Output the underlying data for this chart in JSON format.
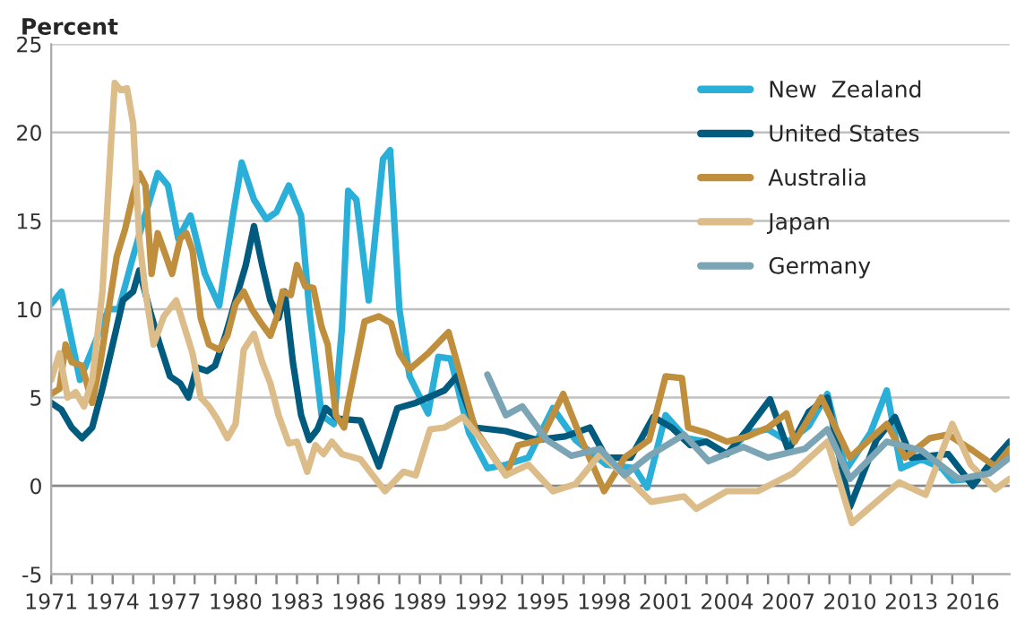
{
  "chart_data": {
    "type": "line",
    "ylabel": "Percent",
    "xlim": [
      1971,
      2017.8
    ],
    "ylim": [
      -5,
      25
    ],
    "yticks": [
      -5,
      0,
      5,
      10,
      15,
      20,
      25
    ],
    "xticks": [
      1971,
      {
        "value": 1972,
        "label": null
      },
      {
        "value": 1973,
        "label": null
      },
      1974,
      {
        "value": 1975,
        "label": null
      },
      {
        "value": 1976,
        "label": null
      },
      1977,
      {
        "value": 1978,
        "label": null
      },
      {
        "value": 1979,
        "label": null
      },
      1980,
      {
        "value": 1981,
        "label": null
      },
      {
        "value": 1982,
        "label": null
      },
      1983,
      {
        "value": 1984,
        "label": null
      },
      {
        "value": 1985,
        "label": null
      },
      1986,
      {
        "value": 1987,
        "label": null
      },
      {
        "value": 1988,
        "label": null
      },
      1989,
      {
        "value": 1990,
        "label": null
      },
      {
        "value": 1991,
        "label": null
      },
      1992,
      {
        "value": 1993,
        "label": null
      },
      {
        "value": 1994,
        "label": null
      },
      1995,
      {
        "value": 1996,
        "label": null
      },
      {
        "value": 1997,
        "label": null
      },
      1998,
      {
        "value": 1999,
        "label": null
      },
      {
        "value": 2000,
        "label": null
      },
      2001,
      {
        "value": 2002,
        "label": null
      },
      {
        "value": 2003,
        "label": null
      },
      2004,
      {
        "value": 2005,
        "label": null
      },
      {
        "value": 2006,
        "label": null
      },
      2007,
      {
        "value": 2008,
        "label": null
      },
      {
        "value": 2009,
        "label": null
      },
      2010,
      {
        "value": 2011,
        "label": null
      },
      {
        "value": 2012,
        "label": null
      },
      2013,
      {
        "value": 2014,
        "label": null
      },
      {
        "value": 2015,
        "label": null
      },
      2016
    ],
    "grid": "y",
    "legend": "top right",
    "marker": "none",
    "line_style": "solid",
    "series": [
      {
        "name": "New  Zealand",
        "color": "#2ab0d8",
        "x": [
          1971,
          1971.5,
          1972.4,
          1973.8,
          1974.3,
          1975,
          1975.5,
          1976.2,
          1976.7,
          1977.2,
          1977.8,
          1978.5,
          1979.2,
          1979.9,
          1980.3,
          1980.9,
          1981.5,
          1982,
          1982.6,
          1983.2,
          1983.6,
          1984.2,
          1984.8,
          1985.2,
          1985.5,
          1985.9,
          1986.5,
          1987.2,
          1987.55,
          1988,
          1988.5,
          1989.4,
          1989.9,
          1990.5,
          1991.4,
          1992.3,
          1993.2,
          1994.3,
          1995.5,
          1996.6,
          1998.1,
          1999.5,
          2000.1,
          2001,
          2002,
          2003,
          2004,
          2005,
          2006,
          2007,
          2008,
          2008.9,
          2009.8,
          2011,
          2011.8,
          2012.5,
          2013.5,
          2014.5,
          2015,
          2016,
          2017.8
        ],
        "values": [
          10.3,
          11,
          6,
          10,
          10,
          13,
          15,
          17.7,
          17,
          14,
          15.3,
          12,
          10.2,
          15.5,
          18.3,
          16.2,
          15.1,
          15.5,
          17,
          15.3,
          10,
          4,
          3.5,
          9,
          16.7,
          16.2,
          10.5,
          18.5,
          19,
          10,
          6.2,
          4.1,
          7.3,
          7.2,
          3,
          1,
          1.2,
          1.6,
          4.4,
          2.6,
          1.2,
          1,
          -0.1,
          4,
          2.7,
          2.5,
          1.8,
          3,
          3.2,
          2.5,
          3.4,
          5.2,
          0.9,
          3,
          5.4,
          1,
          1.5,
          1,
          0.3,
          0.4,
          1.6
        ]
      },
      {
        "name": "United States",
        "color": "#005b7f",
        "x": [
          1971,
          1971.5,
          1972,
          1972.5,
          1973,
          1973.5,
          1974,
          1974.5,
          1975,
          1975.3,
          1975.8,
          1976.3,
          1976.8,
          1977.3,
          1977.7,
          1978.1,
          1978.6,
          1979,
          1979.5,
          1980,
          1980.5,
          1980.9,
          1981.3,
          1981.7,
          1982.1,
          1982.4,
          1982.8,
          1983.2,
          1983.6,
          1984,
          1984.4,
          1985,
          1986.1,
          1987,
          1987.9,
          1988.8,
          1990.2,
          1990.8,
          1991.7,
          1993.2,
          1994.7,
          1996.1,
          1997.3,
          1998.1,
          1999.3,
          2000.4,
          2001.3,
          2002.2,
          2003,
          2004,
          2005,
          2006.1,
          2007,
          2008,
          2008.9,
          2010,
          2011.3,
          2012.2,
          2013,
          2014.8,
          2016,
          2016.8,
          2017.8
        ],
        "values": [
          4.7,
          4.3,
          3.3,
          2.7,
          3.3,
          5.5,
          8,
          10.5,
          11,
          12.2,
          10,
          8,
          6.2,
          5.8,
          5,
          6.7,
          6.5,
          6.8,
          8.5,
          10.5,
          12.5,
          14.7,
          12.5,
          10.5,
          9.5,
          11,
          7,
          4,
          2.6,
          3.2,
          4.4,
          3.8,
          3.7,
          1.1,
          4.4,
          4.7,
          5.4,
          6.2,
          3.3,
          3.1,
          2.6,
          2.8,
          3.3,
          1.6,
          1.6,
          3.9,
          3.3,
          2.3,
          2.5,
          1.8,
          3.2,
          4.9,
          2,
          4.2,
          5,
          -1.2,
          2.6,
          3.9,
          1.6,
          1.8,
          0,
          1.2,
          2.5
        ]
      },
      {
        "name": "Australia",
        "color": "#c08f3e",
        "x": [
          1971,
          1971.4,
          1971.7,
          1972,
          1972.5,
          1973,
          1973.4,
          1973.8,
          1974.2,
          1974.6,
          1975,
          1975.3,
          1975.6,
          1975.9,
          1976.2,
          1976.6,
          1976.9,
          1977.3,
          1977.6,
          1977.9,
          1978.3,
          1978.7,
          1979.2,
          1979.6,
          1980,
          1980.4,
          1980.8,
          1981.2,
          1981.7,
          1982,
          1982.3,
          1982.7,
          1983,
          1983.4,
          1983.8,
          1984.2,
          1984.5,
          1984.9,
          1985.3,
          1985.5,
          1986.3,
          1987,
          1987.6,
          1988,
          1988.5,
          1989.4,
          1990.4,
          1991,
          1991.7,
          1993.2,
          1993.8,
          1994.9,
          1996,
          1996.9,
          1998,
          1999,
          2000.2,
          2001,
          2001.8,
          2002.1,
          2003,
          2004,
          2005,
          2006,
          2006.9,
          2007.3,
          2008.6,
          2010,
          2011.8,
          2012.7,
          2013.9,
          2014.8,
          2016,
          2017.1,
          2017.8
        ],
        "values": [
          5.2,
          5.5,
          8,
          7,
          6.8,
          4.7,
          7,
          10,
          13,
          14.5,
          16.5,
          17.7,
          17,
          12,
          14.3,
          13,
          12,
          14,
          14.3,
          13.3,
          9.5,
          8,
          7.7,
          8.5,
          10.3,
          11,
          10,
          9.3,
          8.5,
          9.5,
          11,
          10.8,
          12.5,
          11.3,
          11.2,
          9,
          8,
          4,
          3.3,
          4.7,
          9.3,
          9.6,
          9.2,
          7.5,
          6.6,
          7.5,
          8.7,
          6.2,
          3.2,
          0.6,
          2.3,
          2.6,
          5.2,
          2.6,
          -0.3,
          1.6,
          2.6,
          6.2,
          6.1,
          3.3,
          3,
          2.5,
          2.8,
          3.3,
          4.1,
          2.5,
          5,
          1.6,
          3.5,
          1.6,
          2.7,
          2.9,
          2,
          1.1,
          2.1
        ]
      },
      {
        "name": "Japan",
        "color": "#dcbc88",
        "x": [
          1971,
          1971.4,
          1971.8,
          1972.2,
          1972.6,
          1973,
          1973.5,
          1973.9,
          1974.1,
          1974.4,
          1974.7,
          1975,
          1975.3,
          1975.6,
          1976,
          1976.5,
          1977.1,
          1977.5,
          1977.9,
          1978.3,
          1978.7,
          1979.1,
          1979.6,
          1980,
          1980.4,
          1980.9,
          1981.3,
          1981.7,
          1982.1,
          1982.6,
          1983,
          1983.5,
          1983.9,
          1984.3,
          1984.7,
          1985.2,
          1986.1,
          1987.3,
          1988.2,
          1988.8,
          1989.5,
          1990.2,
          1991.1,
          1992,
          1993.2,
          1994.3,
          1995.5,
          1996.6,
          1997.8,
          1999,
          2000.3,
          2001.9,
          2002.5,
          2004,
          2005.5,
          2007.2,
          2008.9,
          2010.1,
          2011.3,
          2012.4,
          2013.7,
          2015,
          2015.9,
          2017.1,
          2017.8
        ],
        "values": [
          6,
          7.5,
          5,
          5.3,
          4.5,
          6,
          11,
          19,
          22.8,
          22.4,
          22.5,
          20.5,
          14,
          11,
          8,
          9.6,
          10.5,
          9,
          7.5,
          5,
          4.5,
          3.8,
          2.7,
          3.5,
          7.7,
          8.6,
          7,
          5.8,
          4,
          2.4,
          2.5,
          0.8,
          2.3,
          1.8,
          2.5,
          1.8,
          1.5,
          -0.3,
          0.8,
          0.6,
          3.2,
          3.3,
          3.9,
          2.6,
          0.6,
          1.2,
          -0.3,
          0.1,
          1.8,
          0.6,
          -0.9,
          -0.6,
          -1.3,
          -0.3,
          -0.3,
          0.7,
          2.5,
          -2.1,
          -0.9,
          0.2,
          -0.5,
          3.5,
          1.2,
          -0.2,
          0.4
        ]
      },
      {
        "name": "Germany",
        "color": "#7ba4b4",
        "x": [
          1992.3,
          1993.2,
          1994,
          1995.2,
          1996.4,
          1997.8,
          1999,
          2000.2,
          2001.9,
          2003.1,
          2004.8,
          2006,
          2007.8,
          2008.9,
          2010,
          2011.8,
          2013.5,
          2015.3,
          2016.8,
          2017.8
        ],
        "values": [
          6.3,
          4,
          4.5,
          2.6,
          1.7,
          2.1,
          0.6,
          1.7,
          2.9,
          1.4,
          2.2,
          1.6,
          2.1,
          3.2,
          0.4,
          2.5,
          2,
          0.4,
          0.7,
          1.6
        ]
      }
    ]
  }
}
